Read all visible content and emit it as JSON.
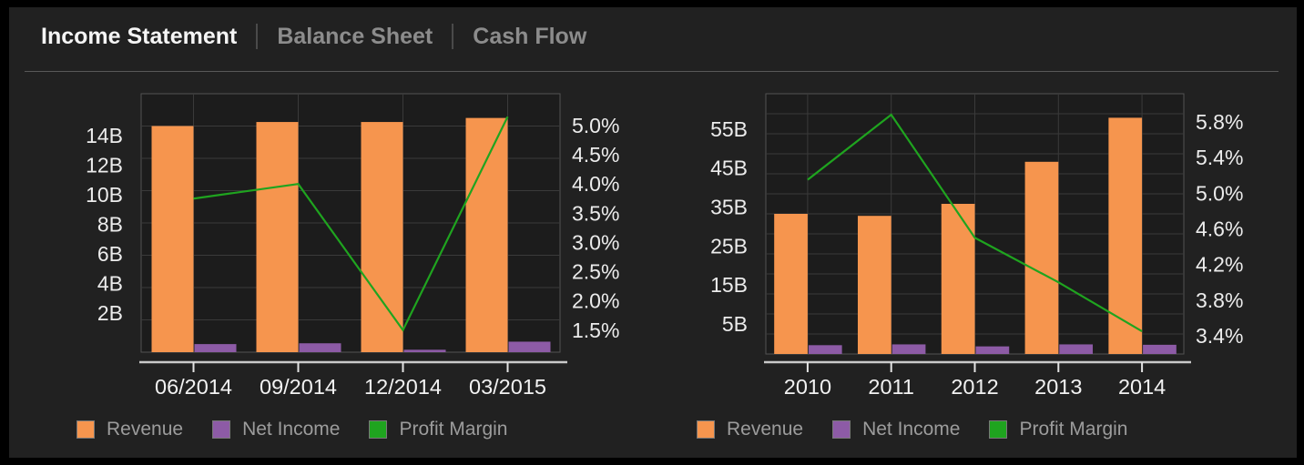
{
  "header": {
    "tabs": [
      {
        "label": "Income Statement",
        "active": true
      },
      {
        "label": "Balance Sheet",
        "active": false
      },
      {
        "label": "Cash Flow",
        "active": false
      }
    ]
  },
  "legend": {
    "items": [
      {
        "label": "Revenue",
        "swatch": "revenue-swatch"
      },
      {
        "label": "Net Income",
        "swatch": "net-income-swatch"
      },
      {
        "label": "Profit Margin",
        "swatch": "profit-margin-swatch"
      }
    ]
  },
  "colors": {
    "revenue": "#f6954e",
    "net_income": "#8d5ba6",
    "profit_margin": "#1fa41f",
    "panel_bg": "#212121",
    "plot_bg": "#1c1c1c",
    "grid": "#3a3a3a",
    "plot_border": "#525252",
    "axis_text": "#ececec",
    "category_text": "#f2f2f2",
    "axis_line": "#c9c9c9",
    "tick": "#e3e3e3",
    "tab_active": "#f5f5f5",
    "tab_inactive": "#8c8c8c",
    "legend_text": "#9c9c9c",
    "divider": "#4a4a4a",
    "separator": "#585858"
  },
  "chart_data": [
    {
      "type": "bar",
      "name": "quarterly-income-statement",
      "categories": [
        "06/2014",
        "09/2014",
        "12/2014",
        "03/2015"
      ],
      "series": [
        {
          "name": "Revenue",
          "unit": "B",
          "axis": "left",
          "values": [
            14.0,
            14.25,
            14.25,
            14.5
          ]
        },
        {
          "name": "Net Income",
          "unit": "B",
          "axis": "left",
          "values": [
            0.5,
            0.55,
            0.15,
            0.65
          ]
        },
        {
          "name": "Profit Margin",
          "unit": "%",
          "axis": "right",
          "values": [
            3.75,
            4.0,
            1.5,
            5.15
          ]
        }
      ],
      "bar_axis": {
        "max": 16,
        "grid_step": 2
      },
      "b_axis": {
        "labels": [
          "14B",
          "12B",
          "10B",
          "8B",
          "6B",
          "4B",
          "2B"
        ],
        "first_frac": 0.162,
        "step_frac": 0.1143
      },
      "p_axis": {
        "labels": [
          "5.0%",
          "4.5%",
          "4.0%",
          "3.5%",
          "3.0%",
          "2.5%",
          "2.0%",
          "1.5%"
        ],
        "first_value": 5.0,
        "tick_step": 0.5,
        "first_frac": 0.123,
        "step_frac": 0.1131
      },
      "grid": true,
      "legend_position": "bottom"
    },
    {
      "type": "bar",
      "name": "annual-income-statement",
      "categories": [
        "2010",
        "2011",
        "2012",
        "2013",
        "2014"
      ],
      "series": [
        {
          "name": "Revenue",
          "unit": "B",
          "axis": "left",
          "values": [
            35,
            34.5,
            37.5,
            48,
            59
          ]
        },
        {
          "name": "Net Income",
          "unit": "B",
          "axis": "left",
          "values": [
            2.2,
            2.4,
            1.9,
            2.4,
            2.3
          ]
        },
        {
          "name": "Profit Margin",
          "unit": "%",
          "axis": "right",
          "values": [
            5.15,
            5.88,
            4.5,
            4.0,
            3.45
          ]
        }
      ],
      "bar_axis": {
        "max": 65,
        "grid_step": 5
      },
      "b_axis": {
        "labels": [
          "55B",
          "45B",
          "35B",
          "25B",
          "15B",
          "5B"
        ],
        "first_frac": 0.136,
        "step_frac": 0.1497
      },
      "p_axis": {
        "labels": [
          "5.8%",
          "5.4%",
          "5.0%",
          "4.6%",
          "4.2%",
          "3.8%",
          "3.4%"
        ],
        "first_value": 5.8,
        "tick_step": 0.4,
        "first_frac": 0.108,
        "step_frac": 0.137
      },
      "grid": true,
      "legend_position": "bottom"
    }
  ]
}
